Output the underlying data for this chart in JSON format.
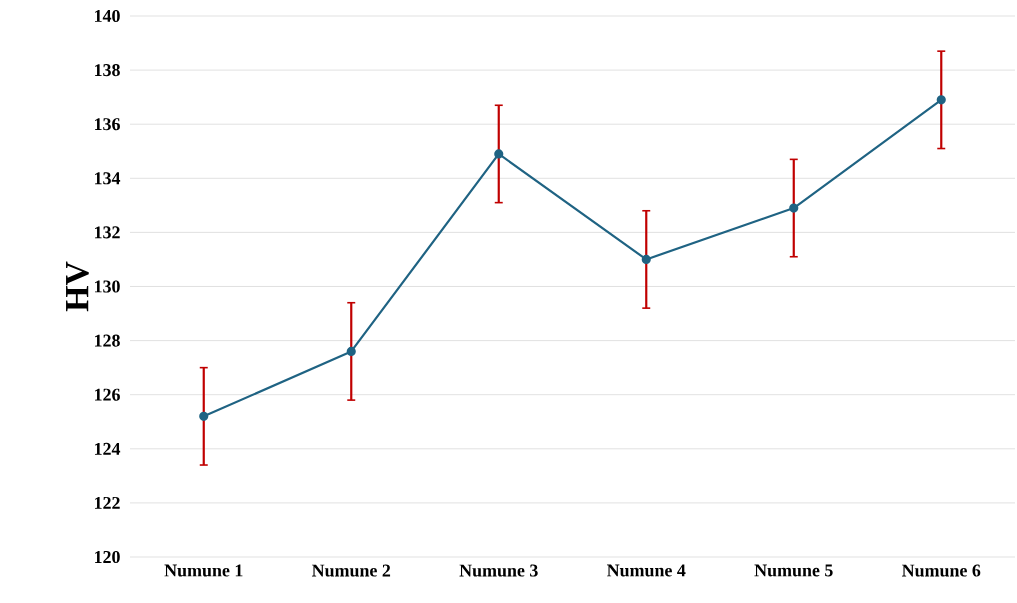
{
  "chart_data": {
    "type": "line",
    "ylabel": "HV",
    "categories": [
      "Numune 1",
      "Numune 2",
      "Numune 3",
      "Numune 4",
      "Numune 5",
      "Numune 6"
    ],
    "series": [
      {
        "color": "#1f6383",
        "values": [
          125.2,
          127.6,
          134.9,
          131.0,
          132.9,
          136.9
        ],
        "errors": [
          1.8,
          1.8,
          1.8,
          1.8,
          1.8,
          1.8
        ]
      }
    ],
    "ylim": [
      120,
      140
    ],
    "yticks": [
      120,
      122,
      124,
      126,
      128,
      130,
      132,
      134,
      136,
      138,
      140
    ],
    "grid": "y",
    "marker": "circle",
    "line_style": "solid"
  }
}
